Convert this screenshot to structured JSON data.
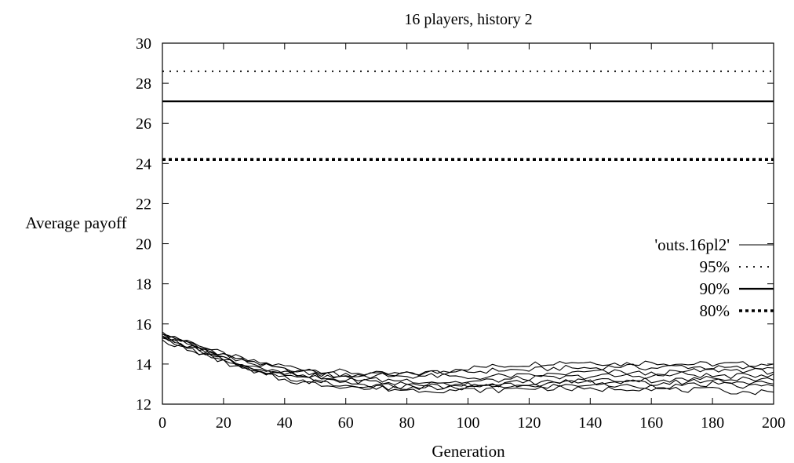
{
  "chart_data": {
    "type": "line",
    "title": "16 players, history 2",
    "xlabel": "Generation",
    "ylabel": "Average payoff",
    "xlim": [
      0,
      200
    ],
    "ylim": [
      12,
      30
    ],
    "xticks": [
      "0",
      "20",
      "40",
      "60",
      "80",
      "100",
      "120",
      "140",
      "160",
      "180",
      "200"
    ],
    "yticks": [
      "12",
      "14",
      "16",
      "18",
      "20",
      "22",
      "24",
      "26",
      "28",
      "30"
    ],
    "grid": false,
    "legend_position": "right",
    "series": [
      {
        "name": "'outs.16pl2'",
        "style": "solid-thin",
        "runs": [
          {
            "x": [
              0,
              10,
              20,
              30,
              40,
              50,
              60,
              70,
              80,
              90,
              100,
              110,
              120,
              130,
              140,
              150,
              160,
              170,
              180,
              190,
              200
            ],
            "y": [
              15.6,
              15.0,
              14.5,
              14.1,
              13.9,
              13.7,
              13.6,
              13.5,
              13.5,
              13.6,
              13.8,
              13.9,
              14.0,
              14.1,
              14.1,
              14.0,
              14.1,
              14.0,
              14.0,
              14.0,
              14.0
            ]
          },
          {
            "x": [
              0,
              10,
              20,
              30,
              40,
              50,
              60,
              70,
              80,
              90,
              100,
              110,
              120,
              130,
              140,
              150,
              160,
              170,
              180,
              190,
              200
            ],
            "y": [
              15.5,
              15.0,
              14.5,
              14.0,
              13.7,
              13.5,
              13.4,
              13.4,
              13.5,
              13.6,
              13.6,
              13.7,
              13.7,
              13.8,
              13.8,
              13.9,
              13.8,
              13.9,
              13.8,
              13.8,
              13.8
            ]
          },
          {
            "x": [
              0,
              10,
              20,
              30,
              40,
              50,
              60,
              70,
              80,
              90,
              100,
              110,
              120,
              130,
              140,
              150,
              160,
              170,
              180,
              190,
              200
            ],
            "y": [
              15.4,
              14.9,
              14.4,
              14.0,
              13.8,
              13.6,
              13.5,
              13.5,
              13.4,
              13.4,
              13.3,
              13.4,
              13.4,
              13.5,
              13.6,
              13.6,
              13.5,
              13.6,
              13.7,
              13.7,
              13.6
            ]
          },
          {
            "x": [
              0,
              10,
              20,
              30,
              40,
              50,
              60,
              70,
              80,
              90,
              100,
              110,
              120,
              130,
              140,
              150,
              160,
              170,
              180,
              190,
              200
            ],
            "y": [
              15.5,
              14.9,
              14.3,
              13.9,
              13.6,
              13.4,
              13.3,
              13.2,
              13.2,
              13.1,
              13.1,
              13.2,
              13.3,
              13.3,
              13.4,
              13.4,
              13.4,
              13.5,
              13.4,
              13.4,
              13.5
            ]
          },
          {
            "x": [
              0,
              10,
              20,
              30,
              40,
              50,
              60,
              70,
              80,
              90,
              100,
              110,
              120,
              130,
              140,
              150,
              160,
              170,
              180,
              190,
              200
            ],
            "y": [
              15.3,
              14.8,
              14.3,
              13.8,
              13.5,
              13.3,
              13.2,
              13.1,
              13.0,
              13.0,
              13.0,
              13.0,
              13.1,
              13.1,
              13.2,
              13.2,
              13.2,
              13.2,
              13.3,
              13.3,
              13.2
            ]
          },
          {
            "x": [
              0,
              10,
              20,
              30,
              40,
              50,
              60,
              70,
              80,
              90,
              100,
              110,
              120,
              130,
              140,
              150,
              160,
              170,
              180,
              190,
              200
            ],
            "y": [
              15.4,
              14.8,
              14.2,
              13.7,
              13.4,
              13.2,
              13.0,
              12.9,
              12.9,
              12.9,
              12.9,
              13.0,
              13.0,
              13.0,
              13.1,
              13.1,
              13.0,
              13.1,
              13.2,
              13.1,
              13.0
            ]
          },
          {
            "x": [
              0,
              10,
              20,
              30,
              40,
              50,
              60,
              70,
              80,
              90,
              100,
              110,
              120,
              130,
              140,
              150,
              160,
              170,
              180,
              190,
              200
            ],
            "y": [
              15.2,
              14.7,
              14.1,
              13.6,
              13.3,
              13.1,
              12.9,
              12.8,
              12.8,
              12.8,
              12.8,
              12.9,
              12.9,
              12.9,
              13.0,
              12.9,
              12.9,
              12.9,
              13.0,
              12.9,
              12.9
            ]
          },
          {
            "x": [
              0,
              10,
              20,
              30,
              40,
              50,
              60,
              70,
              80,
              90,
              100,
              110,
              120,
              130,
              140,
              150,
              160,
              170,
              180,
              190,
              200
            ],
            "y": [
              15.3,
              14.7,
              14.1,
              13.6,
              13.2,
              13.0,
              12.9,
              12.8,
              12.7,
              12.7,
              12.7,
              12.7,
              12.8,
              12.8,
              12.7,
              12.8,
              12.8,
              12.7,
              12.7,
              12.6,
              12.6
            ]
          }
        ]
      },
      {
        "name": "95%",
        "style": "dotted",
        "x": [
          0,
          200
        ],
        "y": [
          28.6,
          28.6
        ]
      },
      {
        "name": "90%",
        "style": "solid-thick",
        "x": [
          0,
          200
        ],
        "y": [
          27.1,
          27.1
        ]
      },
      {
        "name": "80%",
        "style": "dotted-thick",
        "x": [
          0,
          200
        ],
        "y": [
          24.2,
          24.2
        ]
      }
    ]
  }
}
